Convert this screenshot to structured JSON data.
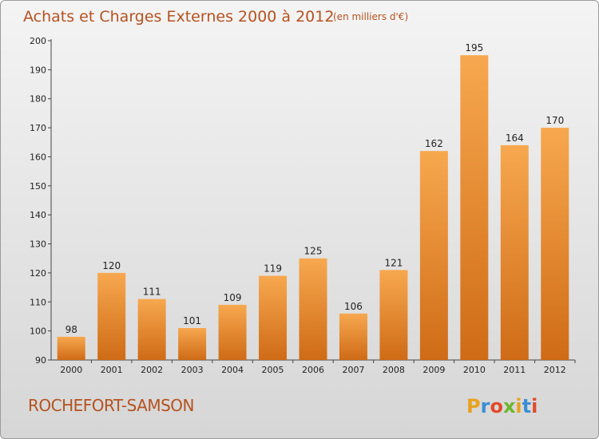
{
  "chart_data": {
    "type": "bar",
    "title": "Achats et Charges Externes 2000 à 2012",
    "unit": "(en milliers d'€)",
    "categories": [
      "2000",
      "2001",
      "2002",
      "2003",
      "2004",
      "2005",
      "2006",
      "2007",
      "2008",
      "2009",
      "2010",
      "2011",
      "2012"
    ],
    "values": [
      98,
      120,
      111,
      101,
      109,
      119,
      125,
      106,
      121,
      162,
      195,
      164,
      170
    ],
    "ylim": [
      90,
      200
    ],
    "yticks": [
      90,
      100,
      110,
      120,
      130,
      140,
      150,
      160,
      170,
      180,
      190,
      200
    ],
    "grid": false,
    "bar_color_top": "#f7a84f",
    "bar_color_bottom": "#cf6b16"
  },
  "commune": "ROCHEFORT-SAMSON",
  "brand": {
    "letters": [
      "P",
      "r",
      "o",
      "x",
      "i",
      "t",
      "i"
    ],
    "colors": [
      "#e8a21e",
      "#3a8fd3",
      "#e34a2a",
      "#6fb52c",
      "#e8a21e",
      "#3a8fd3",
      "#e34a2a"
    ]
  }
}
